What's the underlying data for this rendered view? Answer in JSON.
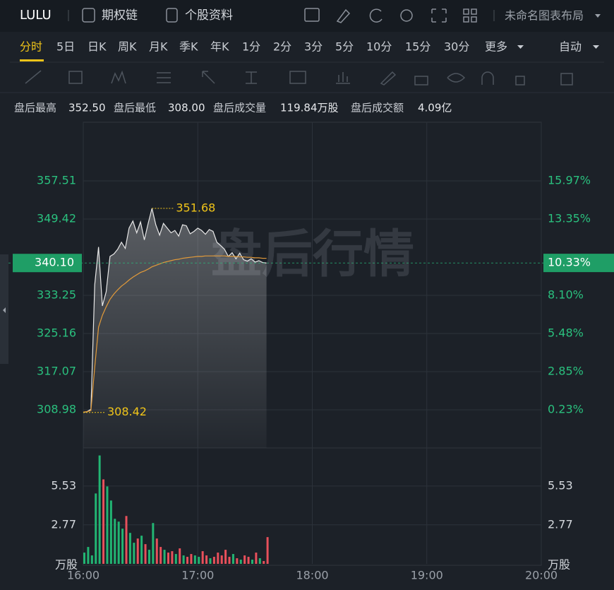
{
  "header": {
    "symbol": "LULU",
    "tabs": [
      "期权链",
      "个股资料"
    ],
    "layout": "未命名图表布局"
  },
  "periods": {
    "items": [
      "分时",
      "5日",
      "日K",
      "周K",
      "月K",
      "季K",
      "年K",
      "1分",
      "2分",
      "3分",
      "5分",
      "10分",
      "15分",
      "30分",
      "更多"
    ],
    "active": 0,
    "mode": "自动"
  },
  "stats": [
    {
      "label": "盘后最高",
      "value": "352.50"
    },
    {
      "label": "盘后最低",
      "value": "308.00"
    },
    {
      "label": "盘后成交量",
      "value": "119.84万股"
    },
    {
      "label": "盘后成交额",
      "value": "4.09亿"
    }
  ],
  "chart_data": {
    "type": "line",
    "watermark": "盘后行情",
    "xlim": [
      "16:00",
      "20:00"
    ],
    "xticks": [
      "16:00",
      "17:00",
      "18:00",
      "19:00",
      "20:00"
    ],
    "x": [
      "16:00",
      "16:02",
      "16:04",
      "16:06",
      "16:08",
      "16:10",
      "16:12",
      "16:14",
      "16:16",
      "16:18",
      "16:20",
      "16:22",
      "16:24",
      "16:26",
      "16:28",
      "16:30",
      "16:32",
      "16:34",
      "16:36",
      "16:38",
      "16:40",
      "16:42",
      "16:44",
      "16:46",
      "16:48",
      "16:50",
      "16:52",
      "16:54",
      "16:56",
      "16:58",
      "17:00",
      "17:02",
      "17:04",
      "17:06",
      "17:08",
      "17:10",
      "17:12",
      "17:14",
      "17:16",
      "17:18",
      "17:20",
      "17:22",
      "17:24",
      "17:26",
      "17:28",
      "17:30",
      "17:32",
      "17:34",
      "17:36"
    ],
    "ylim": [
      300.89,
      369.94
    ],
    "yticks": [
      308.98,
      317.07,
      325.16,
      333.25,
      349.42,
      357.51
    ],
    "y2lim": [
      -2.39,
      20.0
    ],
    "y2ticks": [
      {
        "value": 0.23,
        "label": "0.23%"
      },
      {
        "value": 2.85,
        "label": "2.85%"
      },
      {
        "value": 5.48,
        "label": "5.48%"
      },
      {
        "value": 8.1,
        "label": "8.10%"
      },
      {
        "value": 13.35,
        "label": "13.35%"
      },
      {
        "value": 15.97,
        "label": "15.97%"
      }
    ],
    "grid": true,
    "last": {
      "value": 340.1,
      "label": "340.10"
    },
    "last_pct": {
      "value": 10.33,
      "label": "10.33%"
    },
    "series": [
      {
        "color": "#e8e8e8",
        "values": [
          308.42,
          308.6,
          309.1,
          335.5,
          343.5,
          331.0,
          334.0,
          341.5,
          342.0,
          343.0,
          344.5,
          343.2,
          347.5,
          349.0,
          346.5,
          348.8,
          345.0,
          348.5,
          351.68,
          348.2,
          346.0,
          348.5,
          347.5,
          346.5,
          347.0,
          345.8,
          348.2,
          348.0,
          346.3,
          346.8,
          347.5,
          347.0,
          346.2,
          347.2,
          346.8,
          344.5,
          343.8,
          343.0,
          341.5,
          342.3,
          341.0,
          342.2,
          340.8,
          340.5,
          341.0,
          340.3,
          340.6,
          340.2,
          340.1
        ]
      },
      {
        "color": "#e39b3a",
        "values": [
          308.5,
          308.6,
          308.8,
          318.0,
          326.5,
          329.0,
          330.8,
          332.4,
          333.5,
          334.4,
          335.2,
          335.8,
          336.5,
          337.1,
          337.6,
          338.1,
          338.4,
          338.8,
          339.3,
          339.6,
          339.9,
          340.2,
          340.4,
          340.6,
          340.8,
          340.9,
          341.1,
          341.2,
          341.3,
          341.4,
          341.5,
          341.5,
          341.6,
          341.6,
          341.6,
          341.6,
          341.6,
          341.6,
          341.5,
          341.5,
          341.5,
          341.4,
          341.4,
          341.3,
          341.3,
          341.2,
          341.2,
          341.1,
          341.1
        ]
      }
    ],
    "annotations": [
      {
        "x": "16:36",
        "value": 351.68
      },
      {
        "x": "16:00",
        "value": 308.42
      }
    ],
    "annotation_color": "#f0c419",
    "volume": {
      "ylim": [
        0,
        7.93
      ],
      "yticks": [
        2.77,
        5.53
      ],
      "unit": "万股",
      "up_color": "#22b573",
      "down_color": "#e8505b",
      "values": [
        0.8,
        1.2,
        0.6,
        5.0,
        7.7,
        6.0,
        5.5,
        4.5,
        3.2,
        3.0,
        2.5,
        3.4,
        2.2,
        1.5,
        1.8,
        2.0,
        1.4,
        1.0,
        2.9,
        1.8,
        1.2,
        1.0,
        0.8,
        0.9,
        0.7,
        1.1,
        0.6,
        0.5,
        0.7,
        0.6,
        0.5,
        0.9,
        0.6,
        0.4,
        0.5,
        0.8,
        0.6,
        1.0,
        0.5,
        0.7,
        0.4,
        0.3,
        0.6,
        0.5,
        0.3,
        0.8,
        0.4,
        0.2,
        1.9
      ]
    }
  }
}
